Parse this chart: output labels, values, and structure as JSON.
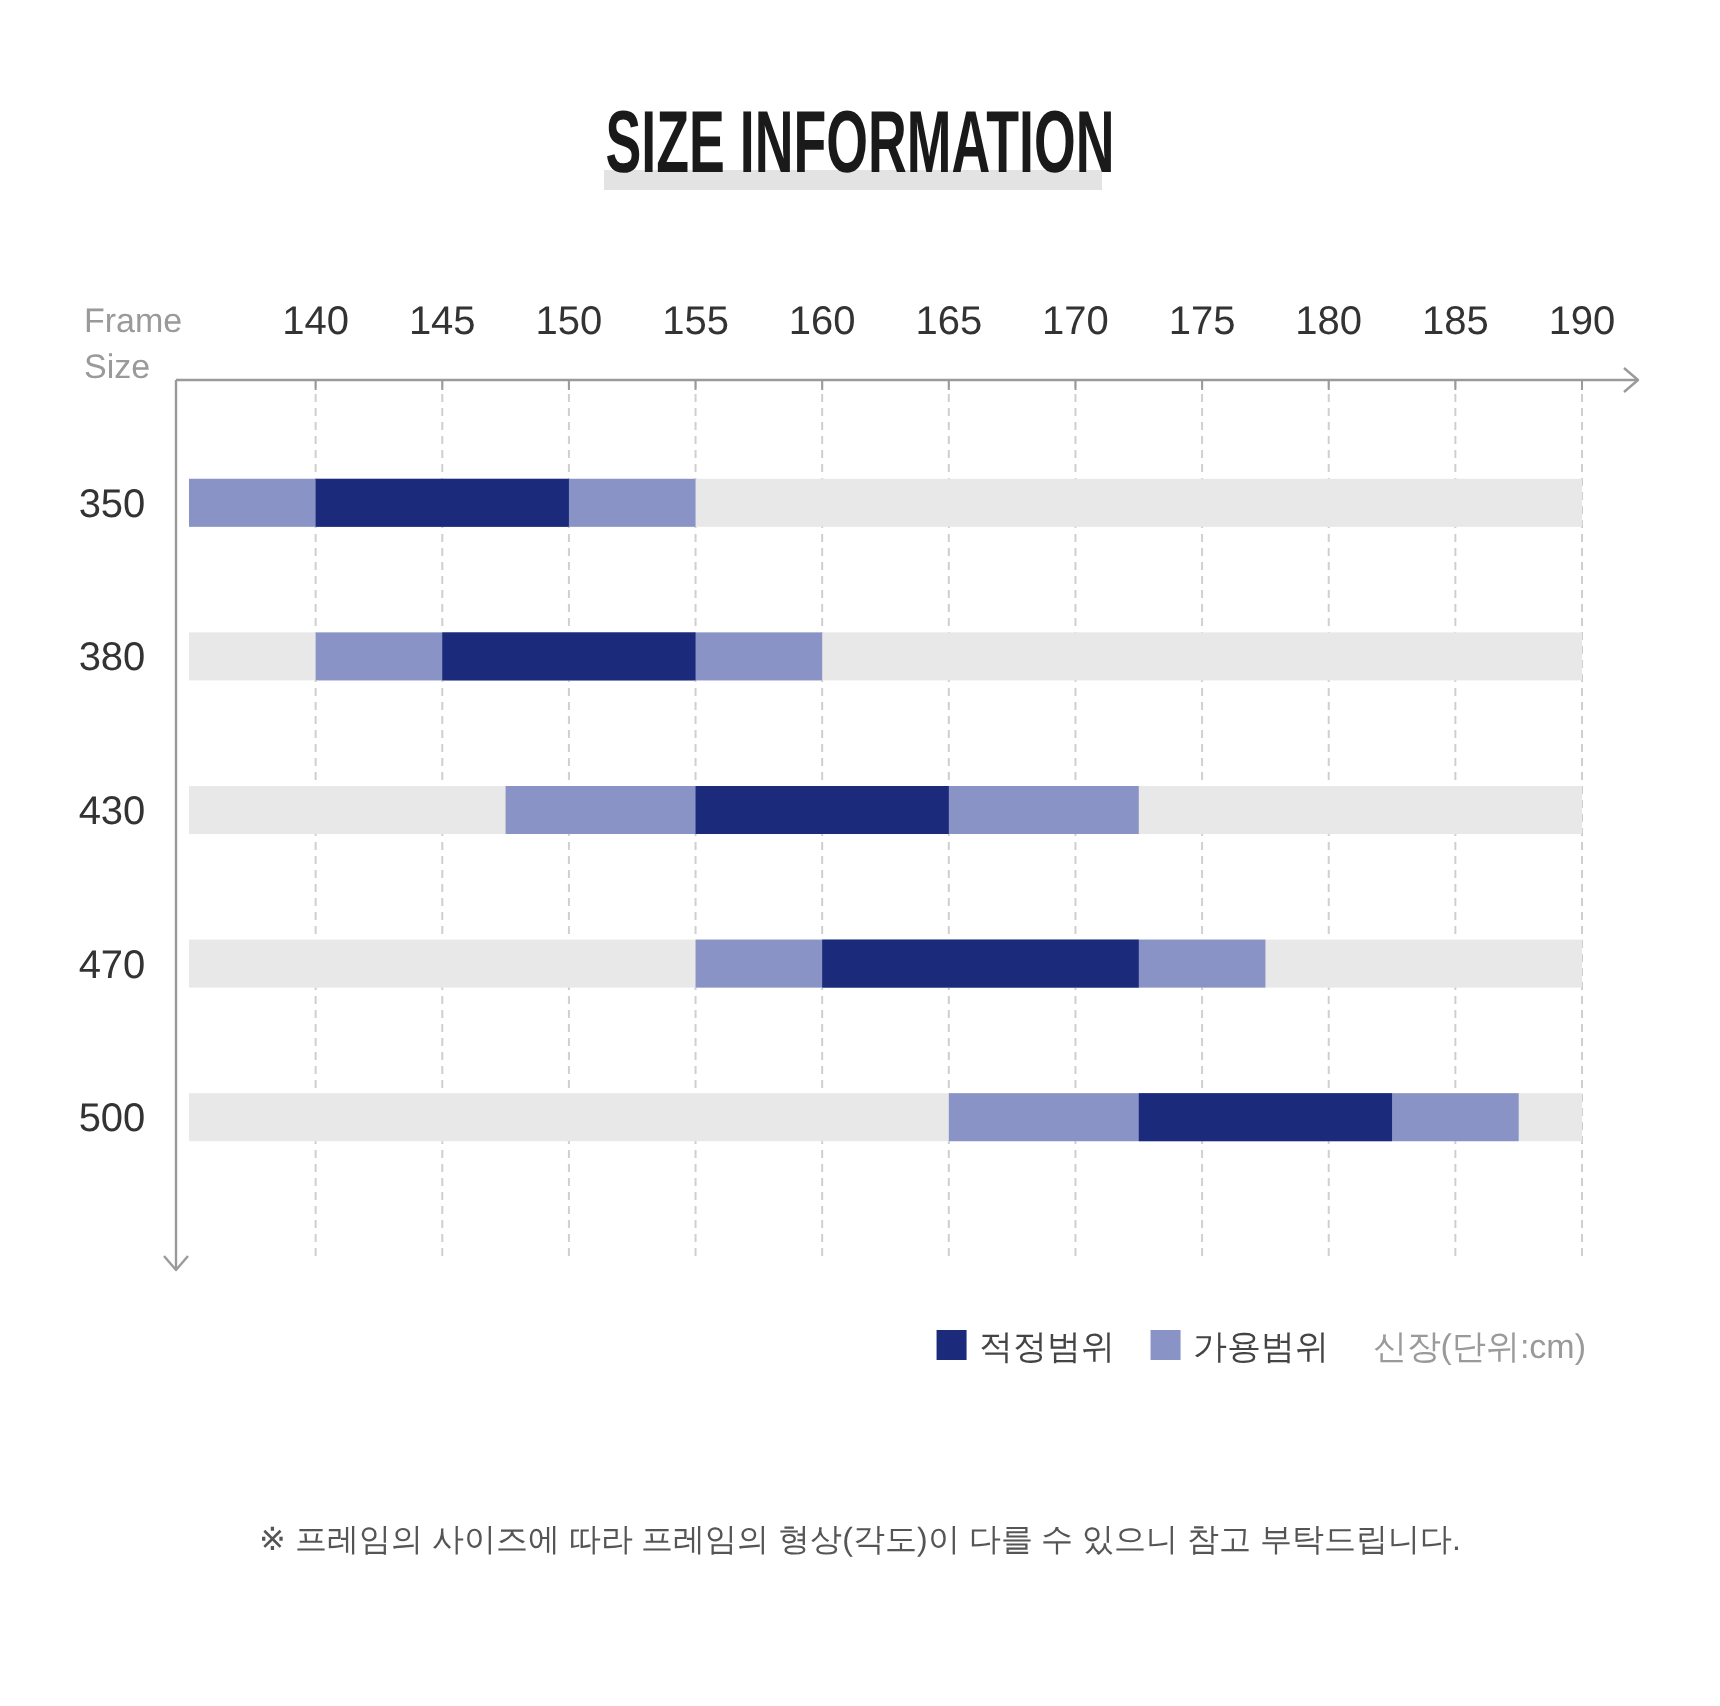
{
  "chart_data": {
    "type": "bar",
    "orientation": "horizontal",
    "title": "SIZE INFORMATION",
    "xlabel": "신장(단위:cm)",
    "ylabel": "Frame Size",
    "categories": [
      "350",
      "380",
      "430",
      "470",
      "500"
    ],
    "series": [
      {
        "name": "적정범위",
        "color": "#1b2a7a",
        "base": [
          140,
          145,
          155,
          160,
          172.5
        ],
        "values": [
          10,
          10,
          10,
          12.5,
          10
        ]
      },
      {
        "name": "가용범위",
        "color": "#8a93c5",
        "base": [
          135,
          140,
          147.5,
          155,
          165
        ],
        "values": [
          20,
          20,
          25,
          22.5,
          22.5
        ]
      },
      {
        "color": "#e8e8e8",
        "base": [
          135,
          135,
          135,
          135,
          135
        ],
        "values": [
          55,
          55,
          55,
          55,
          55
        ]
      }
    ],
    "xlim": [
      135,
      190
    ],
    "xticks": [
      140,
      145,
      150,
      155,
      160,
      165,
      170,
      175,
      180,
      185,
      190
    ],
    "grid": "x",
    "legend": "bottom right",
    "annotations": [
      "※ 프레임의 사이즈에 따라 프레임의 형상(각도)이 다를 수 있으니 참고 부탁드립니다."
    ]
  }
}
